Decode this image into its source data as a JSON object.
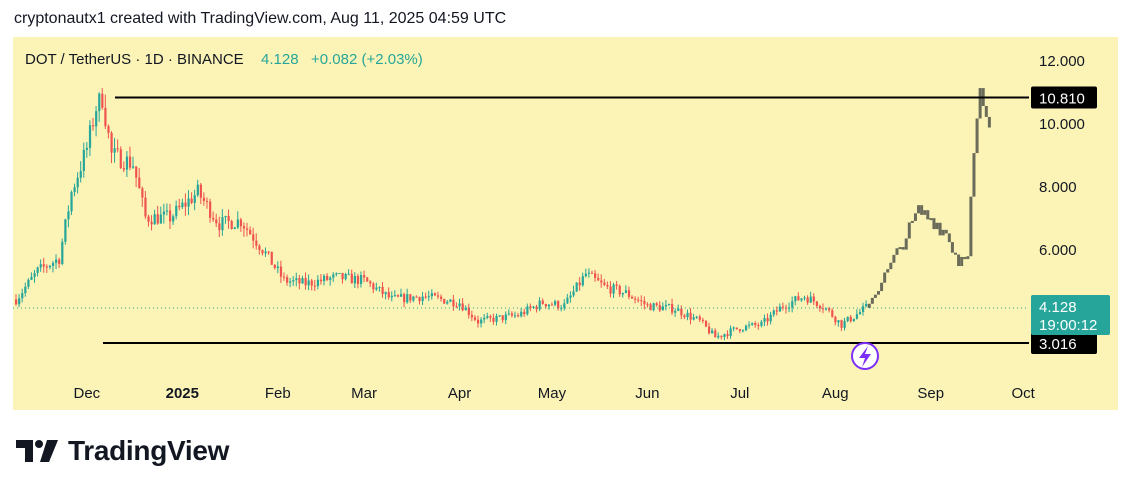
{
  "header": {
    "text": "cryptonautx1 created with TradingView.com, Aug 11, 2025 04:59 UTC"
  },
  "brand": {
    "name": "TradingView"
  },
  "colors": {
    "background": "#fbf4b6",
    "up": "#26a69a",
    "down": "#ef5350",
    "projection": "#6b6b5a",
    "line": "#000000",
    "price_badge": "#26a69a",
    "level_badge": "#000000",
    "alert": "#7b2ff7"
  },
  "chart_data": {
    "type": "candlestick",
    "symbol_line": {
      "symbol": "DOT / TetherUS · 1D · BINANCE",
      "price": "4.128",
      "change": "+0.082 (+2.03%)"
    },
    "x_ticks": [
      "Dec",
      "2025",
      "Feb",
      "Mar",
      "Apr",
      "May",
      "Jun",
      "Jul",
      "Aug",
      "Sep",
      "Oct"
    ],
    "y_ticks": [
      "12.000",
      "10.000",
      "8.000",
      "6.000"
    ],
    "ylim": [
      3.0,
      12.0
    ],
    "levels": [
      {
        "label": "10.810",
        "value": 10.81
      },
      {
        "label": "3.016",
        "value": 3.016
      }
    ],
    "last_price": {
      "label": "4.128",
      "countdown": "19:00:12",
      "value": 4.128
    },
    "close_path": [
      [
        "2024-11-08",
        4.4
      ],
      [
        "2024-11-15",
        5.3
      ],
      [
        "2024-11-22",
        5.7
      ],
      [
        "2024-11-26",
        7.8
      ],
      [
        "2024-12-01",
        9.2
      ],
      [
        "2024-12-04",
        10.5
      ],
      [
        "2024-12-06",
        10.8
      ],
      [
        "2024-12-09",
        9.0
      ],
      [
        "2024-12-16",
        8.7
      ],
      [
        "2024-12-20",
        7.0
      ],
      [
        "2024-12-28",
        7.0
      ],
      [
        "2025-01-06",
        7.8
      ],
      [
        "2025-01-13",
        6.8
      ],
      [
        "2025-01-20",
        6.9
      ],
      [
        "2025-01-27",
        6.0
      ],
      [
        "2025-02-03",
        5.0
      ],
      [
        "2025-02-10",
        4.9
      ],
      [
        "2025-02-20",
        5.1
      ],
      [
        "2025-03-01",
        5.0
      ],
      [
        "2025-03-10",
        4.4
      ],
      [
        "2025-03-20",
        4.5
      ],
      [
        "2025-04-01",
        4.3
      ],
      [
        "2025-04-07",
        3.7
      ],
      [
        "2025-04-20",
        3.9
      ],
      [
        "2025-04-28",
        4.3
      ],
      [
        "2025-05-05",
        4.2
      ],
      [
        "2025-05-12",
        5.2
      ],
      [
        "2025-05-18",
        4.8
      ],
      [
        "2025-05-25",
        4.6
      ],
      [
        "2025-06-01",
        4.2
      ],
      [
        "2025-06-10",
        4.1
      ],
      [
        "2025-06-18",
        3.7
      ],
      [
        "2025-06-23",
        3.2
      ],
      [
        "2025-07-01",
        3.5
      ],
      [
        "2025-07-08",
        3.6
      ],
      [
        "2025-07-15",
        4.2
      ],
      [
        "2025-07-22",
        4.5
      ],
      [
        "2025-07-28",
        4.2
      ],
      [
        "2025-08-03",
        3.6
      ],
      [
        "2025-08-11",
        4.128
      ]
    ],
    "projection_path": [
      [
        "2025-08-12",
        4.3
      ],
      [
        "2025-08-18",
        5.3
      ],
      [
        "2025-08-25",
        6.6
      ],
      [
        "2025-08-28",
        7.2
      ],
      [
        "2025-09-02",
        6.9
      ],
      [
        "2025-09-06",
        6.5
      ],
      [
        "2025-09-10",
        5.6
      ],
      [
        "2025-09-13",
        6.0
      ],
      [
        "2025-09-15",
        9.0
      ],
      [
        "2025-09-17",
        10.8
      ],
      [
        "2025-09-20",
        9.6
      ]
    ],
    "grid": false,
    "legend": "top-left"
  }
}
